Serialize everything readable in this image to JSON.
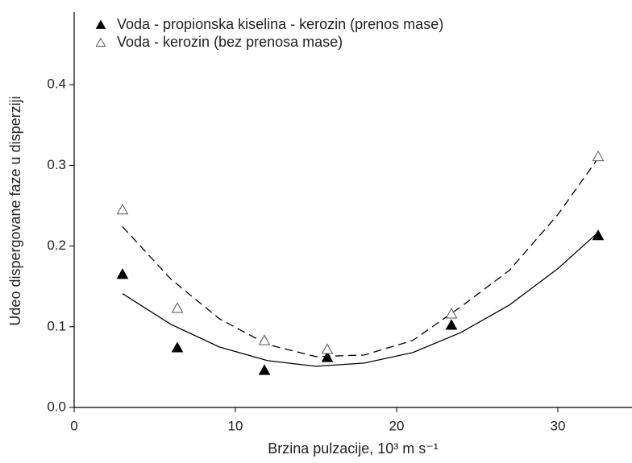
{
  "chart_data": {
    "type": "scatter",
    "x_label": "Brzina pulzacije, 10³ m s⁻¹",
    "y_label": "Udeo dispergovane faze u disperziji",
    "xlim": [
      0,
      34.6
    ],
    "xticks": [
      0,
      10,
      20,
      30
    ],
    "ylim": [
      0,
      0.49
    ],
    "yticks": [
      {
        "value": 0,
        "label": "0.0"
      },
      0.1,
      0.2,
      0.3,
      0.4
    ],
    "legend": "upper-left",
    "series": [
      {
        "name": "Voda - propionska kiselina - kerozin (prenos mase)",
        "color": "#000000",
        "marker": "filled-triangle",
        "x": [
          3.0,
          6.4,
          11.8,
          15.7,
          23.4,
          32.5
        ],
        "values": [
          0.165,
          0.074,
          0.046,
          0.062,
          0.102,
          0.213
        ],
        "line_style": "solid",
        "fit_x": [
          3,
          6,
          9,
          12,
          15,
          18,
          21,
          24,
          27,
          30,
          32.5
        ],
        "fit_values": [
          0.141,
          0.103,
          0.075,
          0.058,
          0.051,
          0.055,
          0.068,
          0.093,
          0.127,
          0.172,
          0.217
        ]
      },
      {
        "name": "Voda - kerozin (bez prenosa mase)",
        "color": "#000000",
        "marker": "open-triangle",
        "x": [
          3.0,
          6.4,
          11.8,
          15.7,
          23.4,
          32.5
        ],
        "values": [
          0.245,
          0.123,
          0.083,
          0.072,
          0.116,
          0.311
        ],
        "line_style": "dashed",
        "fit_x": [
          3,
          6,
          9,
          12,
          15,
          18,
          21,
          24,
          27,
          30,
          32.5
        ],
        "fit_values": [
          0.224,
          0.159,
          0.11,
          0.078,
          0.063,
          0.065,
          0.083,
          0.125,
          0.17,
          0.239,
          0.309
        ]
      }
    ]
  }
}
